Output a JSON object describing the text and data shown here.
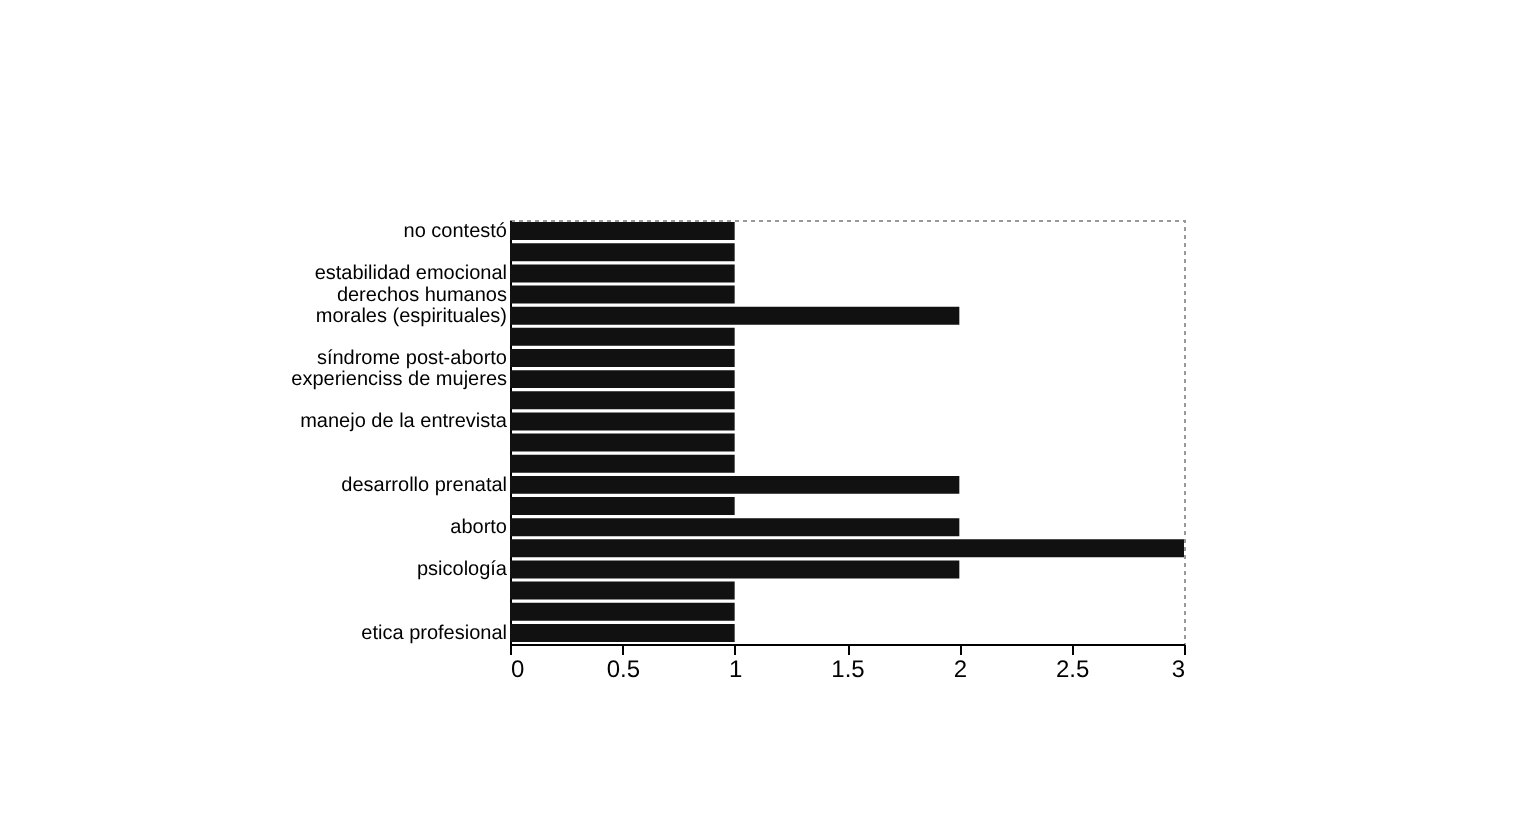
{
  "chart_data": {
    "type": "bar",
    "orientation": "horizontal",
    "categories": [
      "no contestó",
      null,
      "estabilidad emocional",
      "derechos humanos",
      "morales (espirituales)",
      null,
      "síndrome post-aborto",
      "experienciss de mujeres",
      null,
      "manejo de la entrevista",
      null,
      null,
      "desarrollo prenatal",
      null,
      "aborto",
      null,
      "psicología",
      null,
      null,
      "etica profesional"
    ],
    "values": [
      1,
      1,
      1,
      1,
      2,
      1,
      1,
      1,
      1,
      1,
      1,
      1,
      2,
      1,
      2,
      3,
      2,
      1,
      1,
      1
    ],
    "color": "#111111",
    "xlim": [
      0,
      3
    ],
    "xticks": [
      0,
      0.5,
      1,
      1.5,
      2,
      2.5,
      3
    ],
    "grid": false
  }
}
